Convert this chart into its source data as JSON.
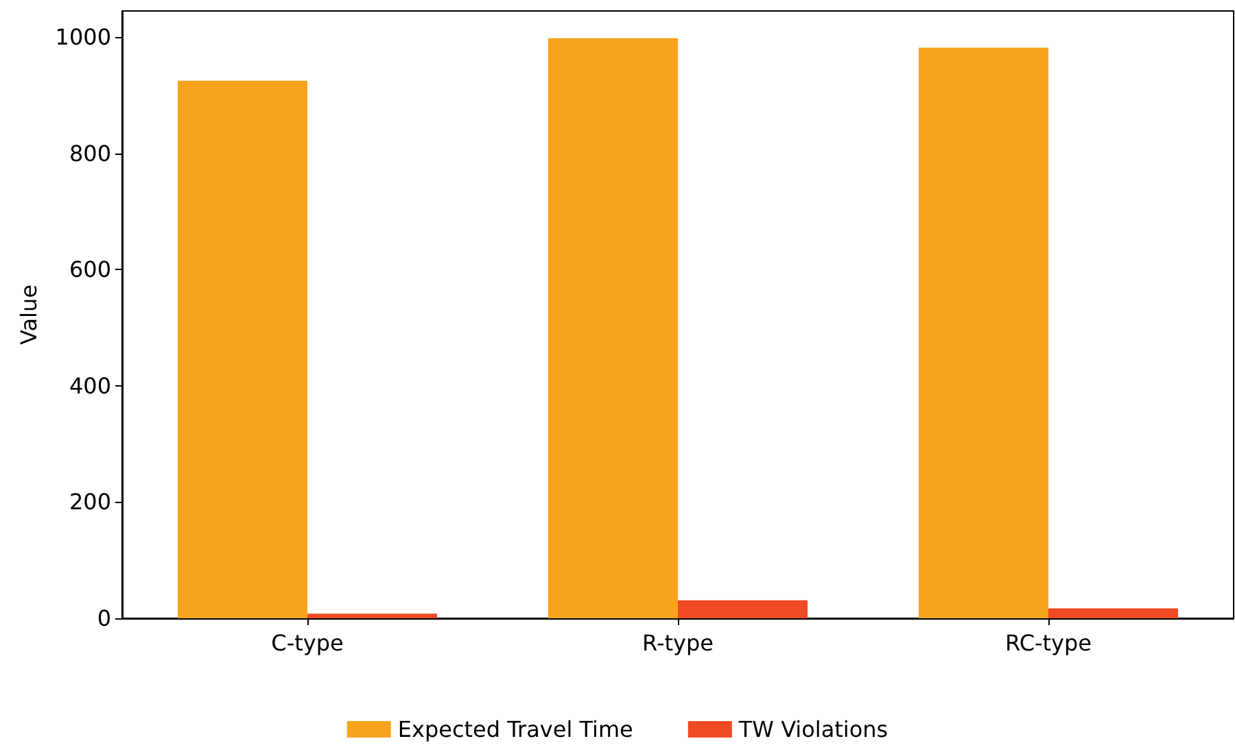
{
  "chart_data": {
    "type": "bar",
    "ylabel": "Value",
    "categories": [
      "C-type",
      "R-type",
      "RC-type"
    ],
    "series": [
      {
        "name": "Expected Travel Time",
        "color": "#f8a31d",
        "values": [
          925,
          998,
          982
        ]
      },
      {
        "name": "TW Violations",
        "color": "#f04a23",
        "values": [
          8,
          31,
          17
        ]
      }
    ],
    "ylim": [
      0,
      1045
    ],
    "yticks": [
      0,
      200,
      400,
      600,
      800,
      1000
    ],
    "grid": false,
    "legend": "bottom"
  }
}
